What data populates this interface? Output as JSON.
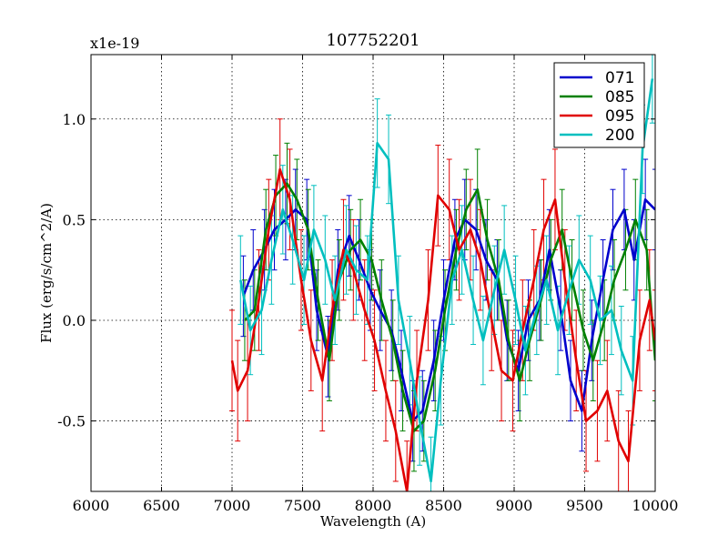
{
  "chart_data": {
    "type": "line",
    "title": "107752201",
    "xlabel": "Wavelength (A)",
    "ylabel": "Flux (erg/s/cm^2/A)",
    "y_offset_label": "x1e-19",
    "xlim": [
      6000,
      10000
    ],
    "ylim": [
      -0.85,
      1.32
    ],
    "grid": true,
    "legend_position": "top-right",
    "x_ticks": [
      6000,
      6500,
      7000,
      7500,
      8000,
      8500,
      9000,
      9500,
      10000
    ],
    "x_tick_labels": [
      "6000",
      "6500",
      "7000",
      "7500",
      "8000",
      "8500",
      "9000",
      "9500",
      "10000"
    ],
    "y_ticks": [
      -0.5,
      0.0,
      0.5,
      1.0
    ],
    "y_tick_labels": [
      "-0.5",
      "0.0",
      "0.5",
      "1.0"
    ],
    "series": [
      {
        "name": "071",
        "color": "#0000cc",
        "x": [
          7080,
          7150,
          7230,
          7300,
          7380,
          7450,
          7530,
          7600,
          7680,
          7750,
          7830,
          7900,
          7980,
          8050,
          8130,
          8200,
          8280,
          8350,
          8430,
          8500,
          8580,
          8650,
          8730,
          8800,
          8880,
          8950,
          9030,
          9100,
          9180,
          9250,
          9330,
          9400,
          9480,
          9550,
          9630,
          9700,
          9780,
          9850,
          9930,
          10000
        ],
        "y": [
          0.12,
          0.25,
          0.35,
          0.45,
          0.5,
          0.55,
          0.5,
          0.05,
          -0.18,
          0.25,
          0.42,
          0.3,
          0.15,
          0.05,
          -0.05,
          -0.25,
          -0.5,
          -0.45,
          -0.2,
          0.1,
          0.4,
          0.5,
          0.45,
          0.3,
          0.2,
          -0.1,
          -0.25,
          0.0,
          0.1,
          0.35,
          0.05,
          -0.3,
          -0.45,
          -0.1,
          0.2,
          0.45,
          0.55,
          0.3,
          0.6,
          0.55
        ],
        "err": 0.2
      },
      {
        "name": "085",
        "color": "#008000",
        "x": [
          7090,
          7160,
          7240,
          7310,
          7390,
          7460,
          7540,
          7610,
          7690,
          7760,
          7840,
          7910,
          7990,
          8060,
          8140,
          8210,
          8290,
          8360,
          8440,
          8510,
          8590,
          8660,
          8740,
          8810,
          8890,
          8960,
          9040,
          9110,
          9190,
          9260,
          9340,
          9410,
          9490,
          9560,
          9640,
          9710,
          9790,
          9860,
          9940,
          10000
        ],
        "y": [
          0.0,
          0.05,
          0.45,
          0.62,
          0.68,
          0.6,
          0.45,
          0.1,
          -0.2,
          0.2,
          0.35,
          0.4,
          0.3,
          0.1,
          -0.1,
          -0.35,
          -0.55,
          -0.5,
          -0.25,
          0.05,
          0.35,
          0.55,
          0.65,
          0.4,
          0.2,
          -0.1,
          -0.3,
          -0.1,
          0.1,
          0.3,
          0.45,
          0.2,
          -0.05,
          -0.2,
          0.0,
          0.2,
          0.35,
          0.5,
          0.35,
          -0.2
        ],
        "err": 0.2
      },
      {
        "name": "095",
        "color": "#e00000",
        "x": [
          7000,
          7040,
          7110,
          7190,
          7260,
          7340,
          7410,
          7490,
          7560,
          7640,
          7710,
          7790,
          7860,
          7940,
          8010,
          8090,
          8160,
          8240,
          8310,
          8390,
          8460,
          8540,
          8610,
          8690,
          8760,
          8840,
          8910,
          8990,
          9060,
          9140,
          9210,
          9290,
          9360,
          9440,
          9510,
          9590,
          9660,
          9740,
          9810,
          9890,
          9960,
          10000
        ],
        "y": [
          -0.2,
          -0.35,
          -0.25,
          0.1,
          0.45,
          0.75,
          0.6,
          0.2,
          -0.1,
          -0.3,
          0.05,
          0.35,
          0.25,
          0.05,
          -0.1,
          -0.35,
          -0.55,
          -0.85,
          -0.3,
          0.1,
          0.62,
          0.55,
          0.35,
          0.45,
          0.3,
          0.0,
          -0.25,
          -0.3,
          -0.05,
          0.2,
          0.45,
          0.6,
          0.2,
          -0.2,
          -0.5,
          -0.45,
          -0.35,
          -0.6,
          -0.7,
          -0.1,
          0.1,
          -0.1
        ],
        "err": 0.25
      },
      {
        "name": "200",
        "color": "#00bfbf",
        "x": [
          7060,
          7130,
          7210,
          7280,
          7360,
          7430,
          7510,
          7580,
          7660,
          7730,
          7810,
          7880,
          7960,
          8030,
          8110,
          8180,
          8260,
          8330,
          8410,
          8480,
          8560,
          8630,
          8710,
          8780,
          8860,
          8930,
          9010,
          9080,
          9160,
          9230,
          9310,
          9390,
          9460,
          9540,
          9610,
          9690,
          9760,
          9840,
          9910,
          9980
        ],
        "y": [
          0.2,
          -0.05,
          0.05,
          0.3,
          0.55,
          0.4,
          0.2,
          0.45,
          0.3,
          0.1,
          0.35,
          0.25,
          0.2,
          0.88,
          0.8,
          0.1,
          -0.2,
          -0.5,
          -0.8,
          -0.3,
          0.2,
          0.35,
          0.1,
          -0.1,
          0.15,
          0.35,
          0.1,
          -0.15,
          0.05,
          0.2,
          -0.05,
          0.15,
          0.3,
          0.2,
          0.0,
          0.05,
          -0.15,
          -0.3,
          0.85,
          1.2
        ],
        "err": 0.22
      }
    ]
  }
}
